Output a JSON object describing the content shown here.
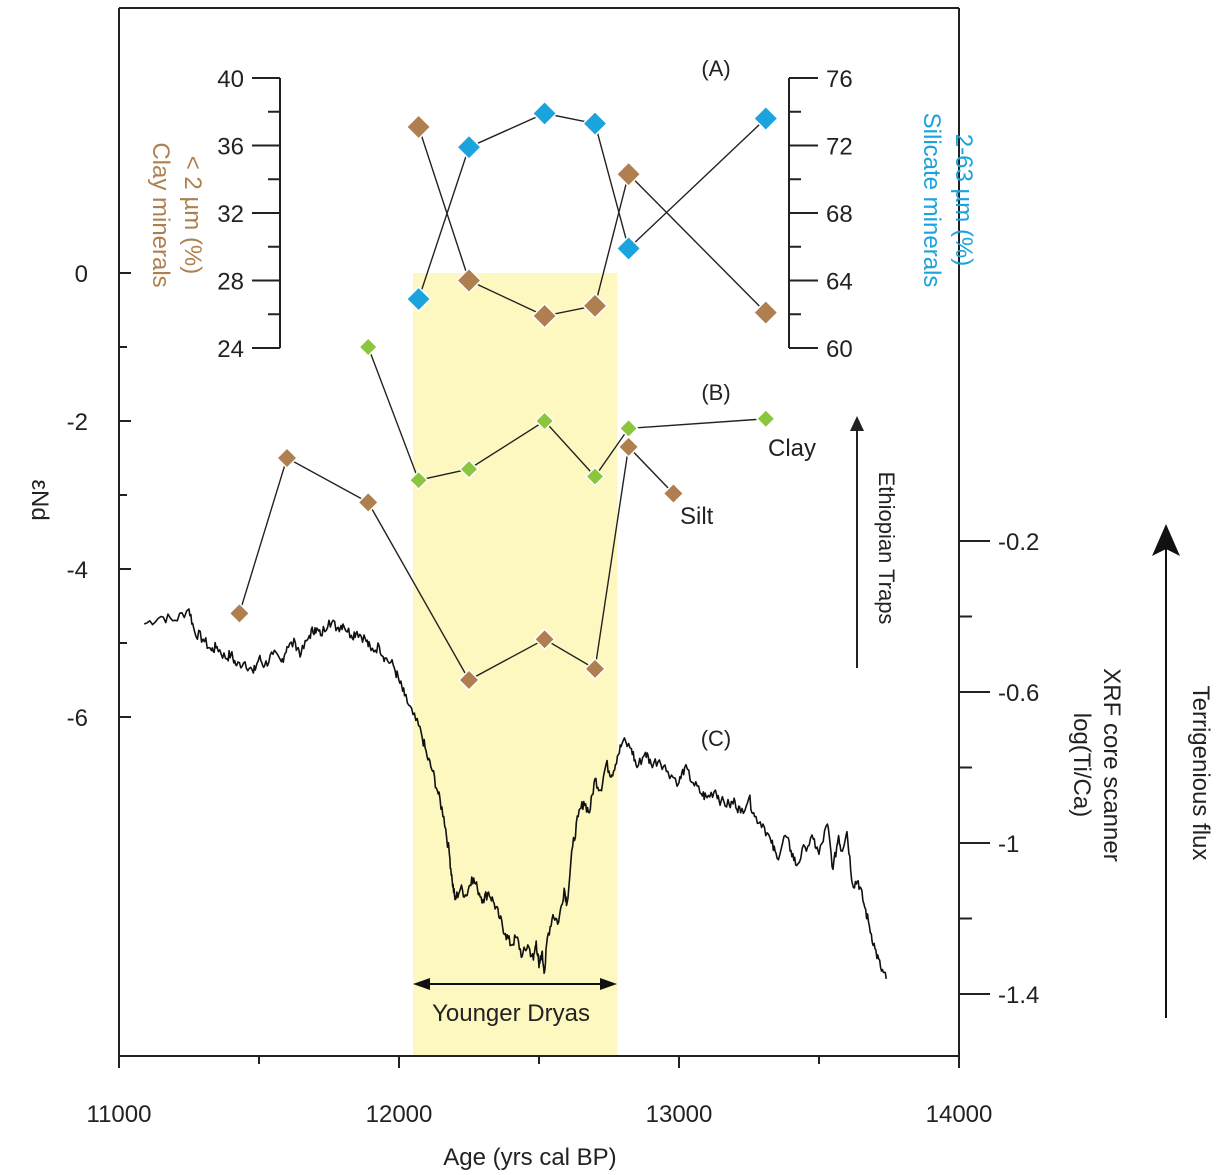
{
  "chart_data": {
    "type": "scatter",
    "xlabel": "Age (yrs cal BP)",
    "xlim": [
      11000,
      14000
    ],
    "x_ticks": [
      "11000",
      "12000",
      "13000",
      "14000"
    ],
    "highlight": {
      "label": "Younger Dryas",
      "x_range": [
        12050,
        12780
      ],
      "color": "#fdf8bf"
    },
    "panels": {
      "A": {
        "label": "(A)",
        "left_axis": {
          "label_line1": "Clay minerals",
          "label_line2": "< 2 µm (%)",
          "ylim": [
            24,
            40
          ],
          "ticks": [
            "24",
            "28",
            "32",
            "36",
            "40"
          ],
          "color": "#b07f50"
        },
        "right_axis": {
          "label_line1": "Silicate minerals",
          "label_line2": "2-63 µm (%)",
          "ylim": [
            60,
            76
          ],
          "ticks": [
            "60",
            "64",
            "68",
            "72",
            "76"
          ],
          "color": "#1aa3dd"
        },
        "series": [
          {
            "axis": "left",
            "color": "#b07f50",
            "x": [
              12070,
              12250,
              12520,
              12700,
              12820,
              13310
            ],
            "y": [
              37.1,
              28.0,
              25.9,
              26.5,
              34.3,
              26.1
            ]
          },
          {
            "axis": "right",
            "color": "#1aa3dd",
            "x": [
              12070,
              12250,
              12520,
              12700,
              12820,
              13310
            ],
            "y": [
              62.9,
              71.9,
              73.9,
              73.3,
              65.9,
              73.6
            ]
          }
        ]
      },
      "B": {
        "label": "(B)",
        "axis": {
          "label": "εNd",
          "ylim": [
            -7.8,
            1.4
          ],
          "ticks": [
            "0",
            "-2",
            "-4",
            "-6"
          ]
        },
        "arrow_label": "Ethiopian Traps",
        "series": [
          {
            "name": "Clay",
            "color": "#8cc63f",
            "x": [
              11890,
              12070,
              12250,
              12520,
              12700,
              12820,
              13310
            ],
            "y": [
              -1.0,
              -2.8,
              -2.65,
              -2.0,
              -2.75,
              -2.1,
              -1.97
            ]
          },
          {
            "name": "Silt",
            "color": "#b07f50",
            "x": [
              11430,
              11600,
              11890,
              12250,
              12520,
              12700,
              12820,
              12980
            ],
            "y": [
              -4.6,
              -2.5,
              -3.1,
              -5.5,
              -4.95,
              -5.35,
              -2.35,
              -2.98
            ]
          }
        ]
      },
      "C": {
        "label": "(C)",
        "axis": {
          "label_line1": "XRF core scanner",
          "label_line2": "log(Ti/Ca)",
          "ylim": [
            -1.4,
            -0.2
          ],
          "ticks": [
            "-0.2",
            "-0.6",
            "-1",
            "-1.4"
          ]
        },
        "arrow_label": "Terrigenious flux",
        "color": "#111111",
        "x": [
          11090,
          11150,
          11200,
          11250,
          11270,
          11300,
          11330,
          11350,
          11380,
          11400,
          11420,
          11450,
          11480,
          11500,
          11520,
          11550,
          11580,
          11600,
          11630,
          11650,
          11680,
          11700,
          11720,
          11750,
          11780,
          11800,
          11830,
          11850,
          11880,
          11900,
          11930,
          11950,
          11980,
          12000,
          12020,
          12050,
          12080,
          12100,
          12120,
          12140,
          12160,
          12180,
          12190,
          12200,
          12220,
          12240,
          12260,
          12280,
          12300,
          12320,
          12340,
          12360,
          12380,
          12400,
          12420,
          12440,
          12460,
          12480,
          12490,
          12500,
          12510,
          12520,
          12530,
          12550,
          12570,
          12590,
          12600,
          12620,
          12640,
          12660,
          12680,
          12700,
          12720,
          12740,
          12760,
          12780,
          12800,
          12830,
          12850,
          12880,
          12900,
          12930,
          12960,
          13000,
          13020,
          13050,
          13080,
          13100,
          13130,
          13150,
          13180,
          13200,
          13220,
          13250,
          13270,
          13300,
          13330,
          13350,
          13380,
          13400,
          13420,
          13450,
          13480,
          13500,
          13530,
          13550,
          13570,
          13580,
          13600,
          13620,
          13640,
          13660,
          13680,
          13700,
          13720,
          13740
        ],
        "y": [
          -0.42,
          -0.4,
          -0.41,
          -0.38,
          -0.44,
          -0.46,
          -0.49,
          -0.48,
          -0.51,
          -0.5,
          -0.53,
          -0.52,
          -0.55,
          -0.51,
          -0.53,
          -0.5,
          -0.52,
          -0.48,
          -0.47,
          -0.5,
          -0.45,
          -0.43,
          -0.45,
          -0.41,
          -0.43,
          -0.42,
          -0.45,
          -0.44,
          -0.46,
          -0.49,
          -0.48,
          -0.51,
          -0.53,
          -0.57,
          -0.61,
          -0.66,
          -0.71,
          -0.77,
          -0.81,
          -0.87,
          -0.93,
          -1.03,
          -1.1,
          -1.15,
          -1.12,
          -1.14,
          -1.09,
          -1.12,
          -1.15,
          -1.13,
          -1.16,
          -1.2,
          -1.24,
          -1.27,
          -1.25,
          -1.3,
          -1.27,
          -1.31,
          -1.26,
          -1.33,
          -1.29,
          -1.34,
          -1.25,
          -1.19,
          -1.21,
          -1.12,
          -1.16,
          -1.01,
          -0.93,
          -0.89,
          -0.92,
          -0.83,
          -0.86,
          -0.79,
          -0.82,
          -0.77,
          -0.73,
          -0.75,
          -0.8,
          -0.76,
          -0.79,
          -0.78,
          -0.81,
          -0.84,
          -0.8,
          -0.84,
          -0.87,
          -0.88,
          -0.86,
          -0.89,
          -0.9,
          -0.89,
          -0.92,
          -0.88,
          -0.93,
          -0.95,
          -1.0,
          -1.04,
          -0.98,
          -1.02,
          -1.06,
          -1.01,
          -0.99,
          -1.03,
          -0.95,
          -1.07,
          -0.98,
          -1.02,
          -0.97,
          -1.11,
          -1.1,
          -1.16,
          -1.22,
          -1.28,
          -1.33,
          -1.36
        ]
      }
    },
    "range_label": "Younger Dryas"
  }
}
